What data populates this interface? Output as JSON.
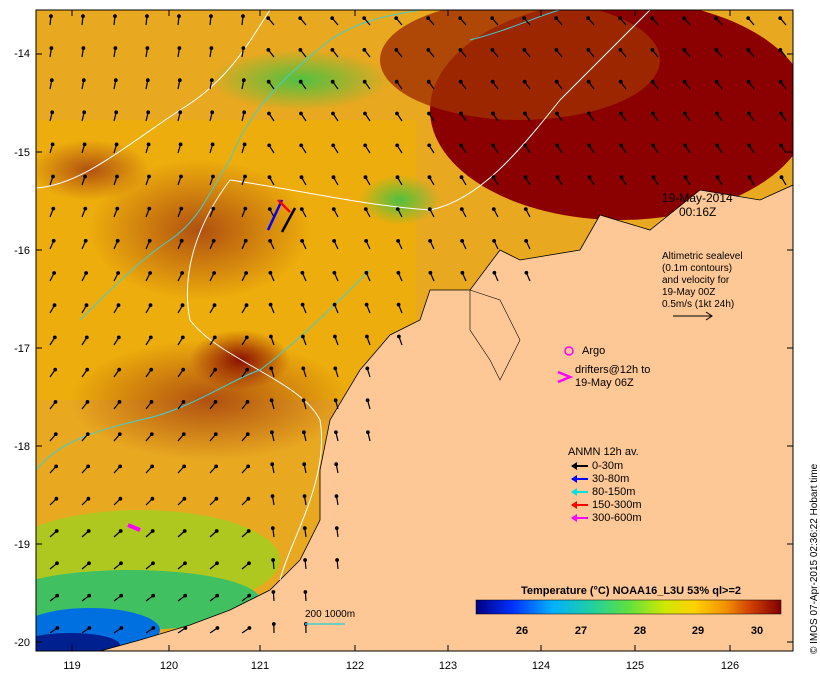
{
  "map": {
    "date": "19-May-2014",
    "time": "00:16Z",
    "altimetry_note": [
      "Altimetric sealevel",
      "(0.1m contours)",
      "and velocity for",
      "19-May 00Z",
      "0.5m/s (1kt 24h)"
    ],
    "argo_label": "Argo",
    "drifters_label": [
      "drifters@12h to",
      "19-May 06Z"
    ],
    "anmn_title": "ANMN 12h av.",
    "anmn_legend": [
      {
        "label": "0-30m",
        "color": "#000000"
      },
      {
        "label": "30-80m",
        "color": "#0000ff"
      },
      {
        "label": "80-150m",
        "color": "#00e0e0"
      },
      {
        "label": "150-300m",
        "color": "#ff0000"
      },
      {
        "label": "300-600m",
        "color": "#ff00ff"
      }
    ],
    "depth_contour_label": "200  1000m",
    "colorbar_title": "Temperature (°C) NOAA16_L3U 53% ql>=2",
    "colorbar_ticks": [
      "26",
      "27",
      "28",
      "29",
      "30"
    ],
    "credit": "© IMOS 07-Apr-2015 02:36:22 Hobart time",
    "lat_ticks": [
      "-14",
      "-15",
      "-16",
      "-17",
      "-18",
      "-19",
      "-20"
    ],
    "lon_ticks": [
      "119",
      "120",
      "121",
      "122",
      "123",
      "124",
      "125",
      "126"
    ],
    "colors": {
      "land": "#fdc896",
      "hot": "#8b0000",
      "warm": "#e8a000",
      "mid": "#ffd000",
      "cool": "#60d040",
      "cold": "#0040c0",
      "argo": "#ff00ff"
    }
  }
}
